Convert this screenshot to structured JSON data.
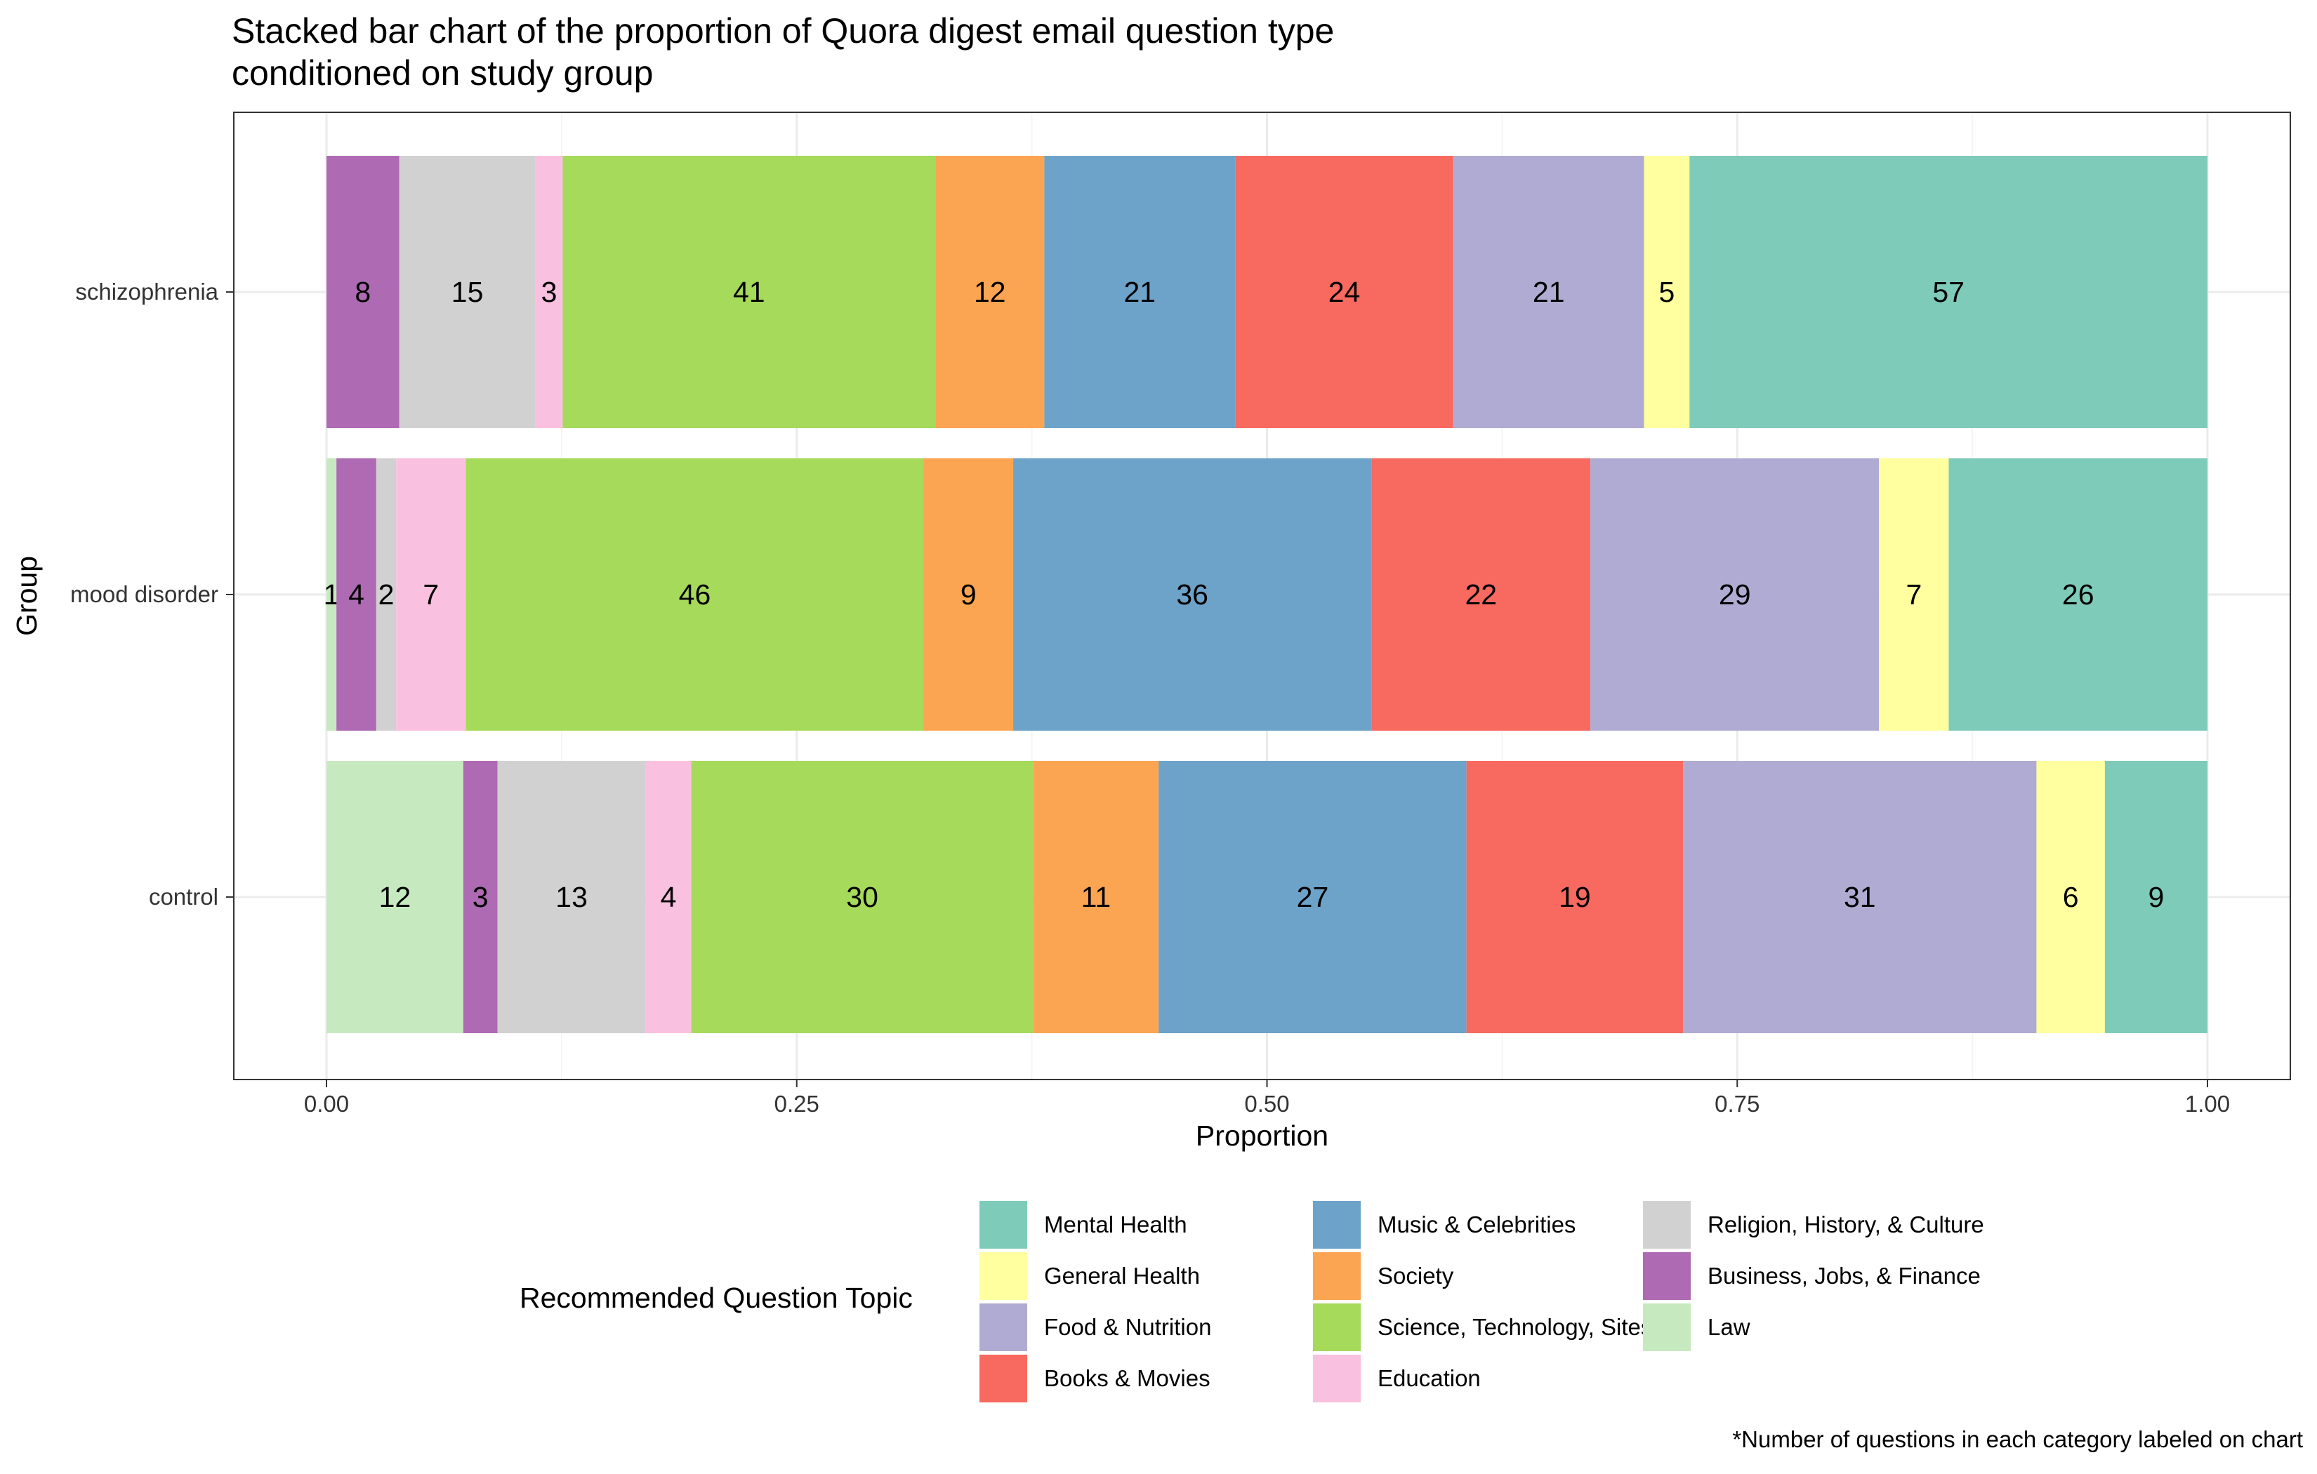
{
  "chart_data": {
    "type": "bar",
    "orientation": "horizontal",
    "stacked": true,
    "normalized": true,
    "title": "Stacked bar chart of the proportion of Quora digest email question type\nconditioned on study group",
    "xlabel": "Proportion",
    "ylabel": "Group",
    "xlim": [
      0,
      1
    ],
    "xticks": [
      "0.00",
      "0.25",
      "0.50",
      "0.75",
      "1.00"
    ],
    "xtick_values": [
      0,
      0.25,
      0.5,
      0.75,
      1
    ],
    "grid": true,
    "categories": [
      "schizophrenia",
      "mood disorder",
      "control"
    ],
    "stack_order": [
      "Law",
      "Business, Jobs, & Finance",
      "Religion, History, & Culture",
      "Education",
      "Science, Technology, Sites",
      "Society",
      "Music & Celebrities",
      "Books & Movies",
      "Food & Nutrition",
      "General Health",
      "Mental Health"
    ],
    "series": [
      {
        "name": "Law",
        "color": "#c7e9c0",
        "values": [
          0,
          1,
          12
        ]
      },
      {
        "name": "Business, Jobs, & Finance",
        "color": "#ae6ab2",
        "values": [
          8,
          4,
          3
        ]
      },
      {
        "name": "Religion, History, & Culture",
        "color": "#d1d1d1",
        "values": [
          15,
          2,
          13
        ]
      },
      {
        "name": "Education",
        "color": "#f9c1df",
        "values": [
          3,
          7,
          4
        ]
      },
      {
        "name": "Science, Technology, Sites",
        "color": "#a6da5b",
        "values": [
          41,
          46,
          30
        ]
      },
      {
        "name": "Society",
        "color": "#fba552",
        "values": [
          12,
          9,
          11
        ]
      },
      {
        "name": "Music & Celebrities",
        "color": "#6da2c9",
        "values": [
          21,
          36,
          27
        ]
      },
      {
        "name": "Books & Movies",
        "color": "#f8695f",
        "values": [
          24,
          22,
          19
        ]
      },
      {
        "name": "Food & Nutrition",
        "color": "#b0abd2",
        "values": [
          21,
          29,
          31
        ]
      },
      {
        "name": "General Health",
        "color": "#ffff9f",
        "values": [
          5,
          7,
          6
        ]
      },
      {
        "name": "Mental Health",
        "color": "#7fcbb9",
        "values": [
          57,
          26,
          9
        ]
      }
    ],
    "legend": {
      "title": "Recommended Question Topic",
      "placement": "bottom",
      "entries": [
        "Mental Health",
        "General Health",
        "Food & Nutrition",
        "Books & Movies",
        "Music & Celebrities",
        "Society",
        "Science, Technology, Sites",
        "Education",
        "Religion, History, & Culture",
        "Business, Jobs, & Finance",
        "Law"
      ]
    },
    "annotation": "*Number of questions in each category labeled on chart"
  }
}
